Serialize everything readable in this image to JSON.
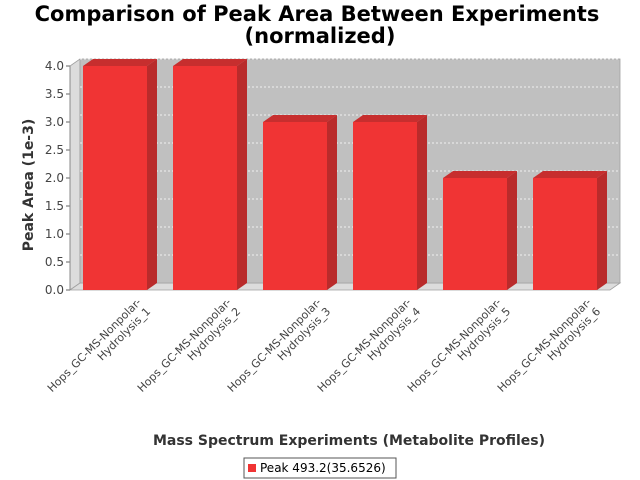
{
  "chart_data": {
    "type": "bar",
    "title_line1": "Comparison of Peak Area Between Experiments",
    "title_line2": "(normalized)",
    "xlabel": "Mass Spectrum Experiments (Metabolite Profiles)",
    "ylabel": "Peak Area (1e-3)",
    "ylim": [
      0,
      4.0
    ],
    "yticks": [
      "0.0",
      "0.5",
      "1.0",
      "1.5",
      "2.0",
      "2.5",
      "3.0",
      "3.5",
      "4.0"
    ],
    "categories": [
      [
        "Hops_GC-MS-Nonpolar-",
        "Hydrolysis_1"
      ],
      [
        "Hops_GC-MS-Nonpolar-",
        "Hydrolysis_2"
      ],
      [
        "Hops_GC-MS-Nonpolar-",
        "Hydrolysis_3"
      ],
      [
        "Hops_GC-MS-Nonpolar-",
        "Hydrolysis_4"
      ],
      [
        "Hops_GC-MS-Nonpolar-",
        "Hydrolysis_5"
      ],
      [
        "Hops_GC-MS-Nonpolar-",
        "Hydrolysis_6"
      ]
    ],
    "series": [
      {
        "name": "Peak 493.2(35.6526)",
        "color": "#f03434",
        "values": [
          4.0,
          4.0,
          3.0,
          3.0,
          2.0,
          2.0
        ]
      }
    ],
    "grid": true,
    "legend": "bottom-center"
  }
}
